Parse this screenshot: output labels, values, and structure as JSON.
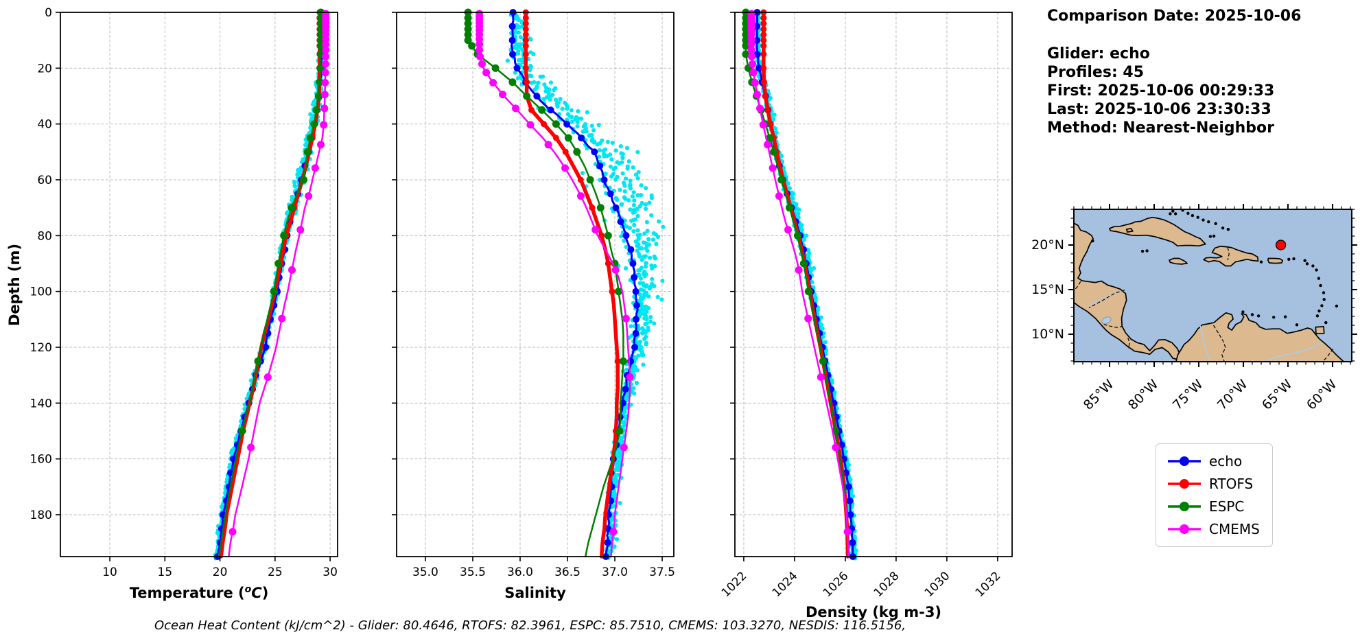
{
  "info_panel": {
    "comparison_date": "Comparison Date: 2025-10-06",
    "glider": "Glider: echo",
    "profiles": "Profiles: 45",
    "first": "First: 2025-10-06 00:29:33",
    "last": "Last: 2025-10-06 23:30:33",
    "method": "Method: Nearest-Neighbor"
  },
  "footer_text": "Ocean Heat Content (kJ/cm^2) - Glider: 80.4646,  RTOFS: 82.3961,  ESPC: 85.7510,  CMEMS: 103.3270,  NESDIS: 116.5156,",
  "legend": {
    "items": [
      {
        "label": "echo",
        "color": "#0000FF"
      },
      {
        "label": "RTOFS",
        "color": "#FF0000"
      },
      {
        "label": "ESPC",
        "color": "#008000"
      },
      {
        "label": "CMEMS",
        "color": "#FF00FF"
      }
    ]
  },
  "depth_axis": {
    "label": "Depth (m)",
    "ticks": [
      0,
      20,
      40,
      60,
      80,
      100,
      120,
      140,
      160,
      180
    ],
    "tick_labels": [
      "0",
      "20",
      "40",
      "60",
      "80",
      "100",
      "120",
      "140",
      "160",
      "180"
    ],
    "max_depth": 195
  },
  "model_depths": [
    0,
    5,
    10,
    15,
    20,
    25,
    30,
    35,
    40,
    45,
    50,
    55,
    60,
    65,
    70,
    75,
    80,
    85,
    90,
    95,
    100,
    105,
    110,
    115,
    120,
    125,
    130,
    135,
    140,
    145,
    150,
    155,
    160,
    165,
    170,
    175,
    180,
    185,
    190,
    195
  ],
  "marker_levels": {
    "echo_step": 5,
    "hycom": [
      0,
      2,
      4,
      6,
      8,
      10,
      12,
      15,
      20,
      25,
      30,
      35,
      40,
      45,
      50,
      60,
      70,
      80,
      90,
      100,
      125,
      150
    ],
    "cmems": [
      0.5,
      1.5,
      2.6,
      3.8,
      5.1,
      6.4,
      7.9,
      9.6,
      11.4,
      13.5,
      15.8,
      18.5,
      21.6,
      25.2,
      29.4,
      34.4,
      40.3,
      47.4,
      55.8,
      65.8,
      77.9,
      92.3,
      109.7,
      130.7,
      155.9,
      186.1
    ]
  },
  "chart_data": [
    {
      "type": "line",
      "name": "temperature",
      "xlabel_parts": [
        {
          "t": "Temperature ("
        },
        {
          "t": "o",
          "sup": true,
          "italic": true
        },
        {
          "t": "C",
          "italic": true
        },
        {
          "t": ")"
        }
      ],
      "xlim": [
        5.51,
        30.68
      ],
      "xticks": [
        10,
        15,
        20,
        25,
        30
      ],
      "xtick_labels": [
        "10",
        "15",
        "20",
        "25",
        "30"
      ],
      "rotate_xtick_labels": false,
      "series": [
        {
          "name": "echo",
          "color": "#0000FF",
          "line_width": 3,
          "marker_size": 5,
          "levels": "echo",
          "wiggle": 0.05,
          "values": [
            29.2,
            29.2,
            29.2,
            29.2,
            29.18,
            29.1,
            29.0,
            28.8,
            28.6,
            28.3,
            28.0,
            27.7,
            27.4,
            27.05,
            26.7,
            26.4,
            26.1,
            25.85,
            25.6,
            25.4,
            25.2,
            24.9,
            24.6,
            24.35,
            24.1,
            23.7,
            23.3,
            22.95,
            22.6,
            22.25,
            21.9,
            21.55,
            21.25,
            21.0,
            20.8,
            20.55,
            20.3,
            20.15,
            20.0,
            19.8
          ]
        },
        {
          "name": "RTOFS",
          "color": "#FF0000",
          "line_width": 5.5,
          "marker_size": 4.5,
          "levels": "hycom",
          "wiggle": 0,
          "values": [
            29.05,
            29.05,
            29.05,
            29.05,
            29.05,
            29.02,
            29.0,
            28.85,
            28.65,
            28.4,
            28.1,
            27.8,
            27.5,
            27.1,
            26.75,
            26.4,
            26.0,
            25.75,
            25.5,
            25.25,
            25.0,
            24.7,
            24.4,
            24.05,
            23.75,
            23.5,
            23.25,
            23.0,
            22.7,
            22.4,
            22.1,
            21.85,
            21.6,
            21.35,
            21.1,
            20.85,
            20.6,
            20.45,
            20.25,
            20.1
          ]
        },
        {
          "name": "ESPC",
          "color": "#008000",
          "line_width": 2.5,
          "marker_size": 5.5,
          "levels": "hycom",
          "wiggle": 0,
          "values": [
            29.15,
            29.15,
            29.15,
            29.13,
            29.1,
            29.05,
            28.95,
            28.75,
            28.55,
            28.2,
            27.95,
            27.8,
            27.6,
            27.0,
            26.5,
            26.1,
            25.8,
            25.55,
            25.3,
            25.1,
            24.9,
            24.6,
            24.3,
            24.0,
            23.7,
            23.45,
            23.2,
            22.95,
            22.7,
            22.3,
            22.0,
            21.7,
            21.45,
            21.2,
            20.95,
            20.7,
            20.5,
            20.3,
            20.1,
            19.9
          ]
        },
        {
          "name": "CMEMS",
          "color": "#FF00FF",
          "line_width": 2.5,
          "marker_size": 5.5,
          "levels": "cmems",
          "wiggle": 0,
          "values": [
            29.6,
            29.6,
            29.6,
            29.6,
            29.58,
            29.55,
            29.52,
            29.48,
            29.42,
            29.3,
            29.0,
            28.7,
            28.4,
            28.1,
            27.7,
            27.45,
            27.2,
            26.9,
            26.65,
            26.4,
            26.15,
            25.85,
            25.6,
            25.35,
            25.1,
            24.75,
            24.4,
            24.0,
            23.6,
            23.35,
            23.1,
            22.85,
            22.6,
            22.3,
            22.0,
            21.7,
            21.4,
            21.2,
            20.95,
            20.8
          ]
        }
      ],
      "glider_scatter": {
        "color": "#00E6F2",
        "dot_radius": 3.1,
        "seed": 101,
        "amp_surface": 0.09,
        "amp_deep": 0.3,
        "amp_peak": 0.28,
        "peak_depth": 50,
        "peak_width": 38,
        "skew": -0.5
      }
    },
    {
      "type": "line",
      "name": "salinity",
      "xlabel_parts": [
        {
          "t": "Salinity"
        }
      ],
      "xlim": [
        34.696,
        37.623
      ],
      "xticks": [
        35.0,
        35.5,
        36.0,
        36.5,
        37.0,
        37.5
      ],
      "xtick_labels": [
        "35.0",
        "35.5",
        "36.0",
        "36.5",
        "37.0",
        "37.5"
      ],
      "rotate_xtick_labels": false,
      "series": [
        {
          "name": "echo",
          "color": "#0000FF",
          "line_width": 3,
          "marker_size": 5,
          "levels": "echo",
          "wiggle": 0.012,
          "values": [
            35.92,
            35.92,
            35.92,
            35.92,
            35.97,
            36.06,
            36.17,
            36.32,
            36.5,
            36.65,
            36.78,
            36.84,
            36.89,
            36.95,
            37.01,
            37.07,
            37.12,
            37.16,
            37.19,
            37.21,
            37.22,
            37.23,
            37.23,
            37.22,
            37.2,
            37.17,
            37.14,
            37.11,
            37.08,
            37.06,
            37.04,
            37.01,
            36.99,
            36.97,
            36.96,
            36.95,
            36.94,
            36.93,
            36.92,
            36.91
          ]
        },
        {
          "name": "RTOFS",
          "color": "#FF0000",
          "line_width": 5.5,
          "marker_size": 4.5,
          "levels": "hycom",
          "wiggle": 0,
          "values": [
            36.06,
            36.06,
            36.06,
            36.06,
            36.06,
            36.07,
            36.07,
            36.12,
            36.25,
            36.38,
            36.48,
            36.56,
            36.64,
            36.7,
            36.76,
            36.81,
            36.86,
            36.9,
            36.93,
            36.95,
            36.97,
            36.99,
            37.0,
            37.01,
            37.02,
            37.03,
            37.03,
            37.03,
            37.02,
            37.02,
            37.01,
            37.0,
            36.98,
            36.96,
            36.94,
            36.92,
            36.9,
            36.89,
            36.87,
            36.86
          ]
        },
        {
          "name": "ESPC",
          "color": "#008000",
          "line_width": 2.5,
          "marker_size": 5.5,
          "levels": "hycom",
          "wiggle": 0,
          "values": [
            35.45,
            35.45,
            35.45,
            35.55,
            35.74,
            35.92,
            36.07,
            36.23,
            36.38,
            36.51,
            36.6,
            36.68,
            36.74,
            36.8,
            36.85,
            36.89,
            36.93,
            36.96,
            37.0,
            37.02,
            37.04,
            37.06,
            37.08,
            37.09,
            37.09,
            37.09,
            37.08,
            37.07,
            37.06,
            37.06,
            37.05,
            37.02,
            36.98,
            36.93,
            36.88,
            36.84,
            36.8,
            36.76,
            36.72,
            36.69
          ]
        },
        {
          "name": "CMEMS",
          "color": "#FF00FF",
          "line_width": 2.5,
          "marker_size": 5.5,
          "levels": "cmems",
          "wiggle": 0,
          "values": [
            35.57,
            35.57,
            35.57,
            35.57,
            35.61,
            35.71,
            35.83,
            35.97,
            36.1,
            36.24,
            36.36,
            36.46,
            36.55,
            36.63,
            36.7,
            36.76,
            36.82,
            36.9,
            36.98,
            37.04,
            37.08,
            37.1,
            37.12,
            37.13,
            37.14,
            37.15,
            37.16,
            37.16,
            37.15,
            37.14,
            37.12,
            37.1,
            37.08,
            37.06,
            37.04,
            37.02,
            37.0,
            36.99,
            36.97,
            36.96
          ]
        }
      ],
      "glider_scatter": {
        "color": "#00E6F2",
        "dot_radius": 3.1,
        "seed": 202,
        "amp_surface": 0.025,
        "amp_deep": 0.06,
        "amp_peak": 0.24,
        "peak_depth": 60,
        "peak_width": 45,
        "skew": 1.1
      }
    },
    {
      "type": "line",
      "name": "density",
      "xlabel_parts": [
        {
          "t": "Density (kg m-3)"
        }
      ],
      "xlim": [
        1021.65,
        1032.57
      ],
      "xticks": [
        1022,
        1024,
        1026,
        1028,
        1030,
        1032
      ],
      "xtick_labels": [
        "1022",
        "1024",
        "1026",
        "1028",
        "1030",
        "1032"
      ],
      "rotate_xtick_labels": true,
      "series": [
        {
          "name": "echo",
          "color": "#0000FF",
          "line_width": 3,
          "marker_size": 5,
          "levels": "echo",
          "wiggle": 0.015,
          "values": [
            1022.52,
            1022.52,
            1022.52,
            1022.53,
            1022.6,
            1022.72,
            1022.85,
            1022.95,
            1023.05,
            1023.15,
            1023.25,
            1023.4,
            1023.55,
            1023.7,
            1023.88,
            1024.06,
            1024.22,
            1024.34,
            1024.46,
            1024.56,
            1024.65,
            1024.76,
            1024.87,
            1024.98,
            1025.09,
            1025.2,
            1025.32,
            1025.43,
            1025.54,
            1025.65,
            1025.75,
            1025.85,
            1025.95,
            1026.04,
            1026.12,
            1026.17,
            1026.21,
            1026.25,
            1026.28,
            1026.3
          ]
        },
        {
          "name": "RTOFS",
          "color": "#FF0000",
          "line_width": 5.5,
          "marker_size": 4.5,
          "levels": "hycom",
          "wiggle": 0,
          "values": [
            1022.78,
            1022.78,
            1022.78,
            1022.78,
            1022.78,
            1022.8,
            1022.85,
            1022.95,
            1023.05,
            1023.18,
            1023.3,
            1023.42,
            1023.55,
            1023.7,
            1023.85,
            1024.0,
            1024.15,
            1024.28,
            1024.4,
            1024.5,
            1024.6,
            1024.7,
            1024.8,
            1024.91,
            1025.02,
            1025.12,
            1025.22,
            1025.32,
            1025.42,
            1025.52,
            1025.62,
            1025.72,
            1025.81,
            1025.89,
            1025.95,
            1026.0,
            1026.04,
            1026.07,
            1026.09,
            1026.1
          ]
        },
        {
          "name": "ESPC",
          "color": "#008000",
          "line_width": 2.5,
          "marker_size": 5.5,
          "levels": "hycom",
          "wiggle": 0,
          "values": [
            1022.08,
            1022.08,
            1022.08,
            1022.08,
            1022.18,
            1022.32,
            1022.5,
            1022.68,
            1022.85,
            1023.02,
            1023.18,
            1023.33,
            1023.48,
            1023.64,
            1023.8,
            1023.96,
            1024.12,
            1024.25,
            1024.36,
            1024.46,
            1024.55,
            1024.67,
            1024.78,
            1024.9,
            1025.01,
            1025.12,
            1025.22,
            1025.32,
            1025.42,
            1025.52,
            1025.61,
            1025.7,
            1025.79,
            1025.87,
            1025.95,
            1026.0,
            1026.05,
            1026.08,
            1026.1,
            1026.12
          ]
        },
        {
          "name": "CMEMS",
          "color": "#FF00FF",
          "line_width": 2.5,
          "marker_size": 5.5,
          "levels": "cmems",
          "wiggle": 0,
          "values": [
            1022.3,
            1022.3,
            1022.3,
            1022.3,
            1022.36,
            1022.44,
            1022.54,
            1022.65,
            1022.76,
            1022.88,
            1023.0,
            1023.12,
            1023.24,
            1023.37,
            1023.5,
            1023.64,
            1023.82,
            1023.98,
            1024.12,
            1024.22,
            1024.3,
            1024.42,
            1024.54,
            1024.66,
            1024.78,
            1024.9,
            1025.02,
            1025.14,
            1025.26,
            1025.38,
            1025.5,
            1025.6,
            1025.7,
            1025.8,
            1025.9,
            1025.98,
            1026.05,
            1026.08,
            1026.1,
            1026.12
          ]
        }
      ],
      "glider_scatter": {
        "color": "#00E6F2",
        "dot_radius": 3.1,
        "seed": 303,
        "amp_surface": 0.04,
        "amp_deep": 0.11,
        "amp_peak": 0.1,
        "peak_depth": 60,
        "peak_width": 50,
        "skew": 0.6
      }
    }
  ],
  "map": {
    "extent": {
      "lon_min": -89.0,
      "lon_max": -57.85,
      "lat_min": 6.92,
      "lat_max": 24.0
    },
    "lon_ticks": [
      {
        "lon": -85,
        "label": "85°W"
      },
      {
        "lon": -80,
        "label": "80°W"
      },
      {
        "lon": -75,
        "label": "75°W"
      },
      {
        "lon": -70,
        "label": "70°W"
      },
      {
        "lon": -65,
        "label": "65°W"
      },
      {
        "lon": -60,
        "label": "60°W"
      }
    ],
    "lat_ticks": [
      {
        "lat": 20,
        "label": "20°N"
      },
      {
        "lat": 15,
        "label": "15°N"
      },
      {
        "lat": 10,
        "label": "10°N"
      }
    ],
    "glider_marker": {
      "lon": -65.8,
      "lat": 20.0,
      "color": "#FF0000"
    },
    "colors": {
      "land": "#DCB98E",
      "ocean": "#A5C1DF",
      "river": "#A9CCEC",
      "coast": "#000000"
    }
  },
  "style": {
    "grid_color": "#bbbbbb",
    "spine_color": "#000000"
  }
}
